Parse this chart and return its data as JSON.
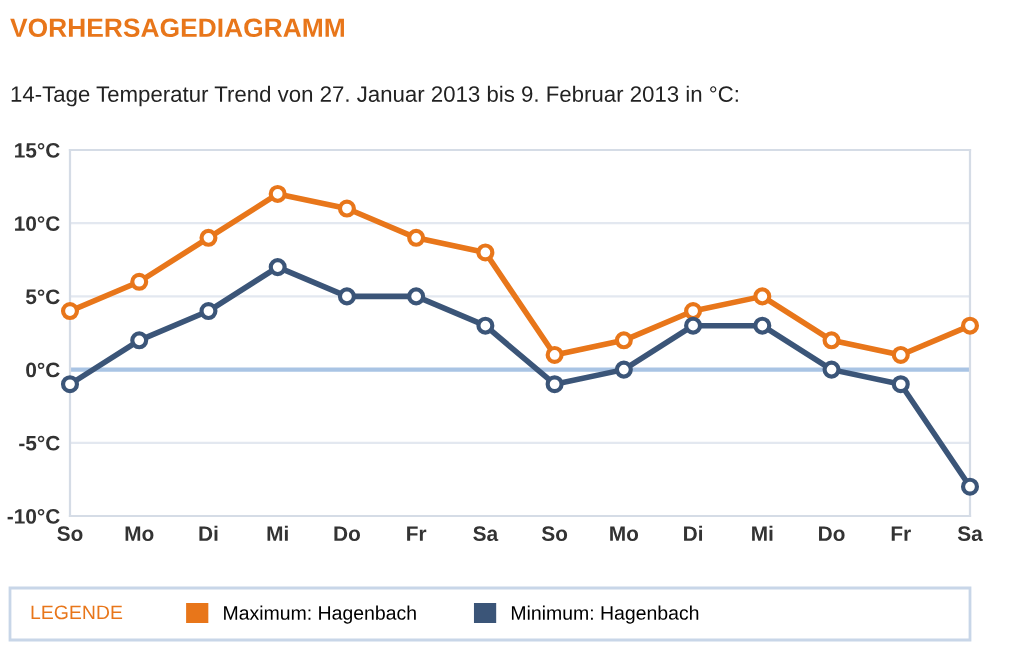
{
  "chart_data": {
    "type": "line",
    "title": "VORHERSAGEDIAGRAMM",
    "subtitle": "14-Tage Temperatur Trend von 27. Januar 2013 bis 9. Februar 2013 in °C:",
    "legend_title": "LEGENDE",
    "categories": [
      "So",
      "Mo",
      "Di",
      "Mi",
      "Do",
      "Fr",
      "Sa",
      "So",
      "Mo",
      "Di",
      "Mi",
      "Do",
      "Fr",
      "Sa"
    ],
    "series": [
      {
        "name": "Maximum: Hagenbach",
        "color": "#e8761a",
        "values": [
          4,
          6,
          9,
          12,
          11,
          9,
          8,
          1,
          2,
          4,
          5,
          2,
          1,
          3
        ]
      },
      {
        "name": "Minimum: Hagenbach",
        "color": "#3b5578",
        "values": [
          -1,
          2,
          4,
          7,
          5,
          5,
          3,
          -1,
          0,
          3,
          3,
          0,
          -1,
          -8
        ]
      }
    ],
    "ylim": [
      -10,
      15
    ],
    "yticks": [
      {
        "value": 15,
        "label": "15°C"
      },
      {
        "value": 10,
        "label": "10°C"
      },
      {
        "value": 5,
        "label": "5°C"
      },
      {
        "value": 0,
        "label": "0°C"
      },
      {
        "value": -5,
        "label": "-5°C"
      },
      {
        "value": -10,
        "label": "-10°C"
      }
    ],
    "ref_lines": [
      {
        "axis": "y",
        "value": 0,
        "color": "#a9c4e4"
      }
    ],
    "grid": "y",
    "legend": "bottom",
    "marker": "circle",
    "line_style": "solid"
  }
}
